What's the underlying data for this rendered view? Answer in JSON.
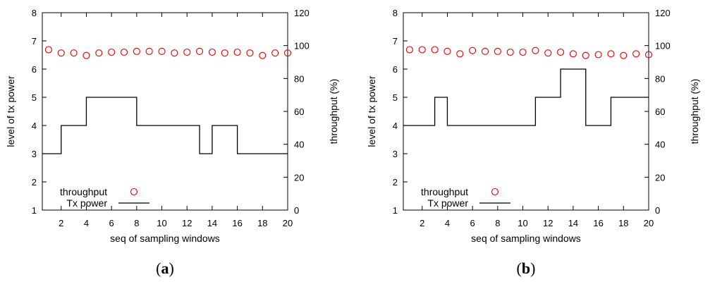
{
  "chart_data": [
    {
      "type": "line",
      "panel_label": "a",
      "caption_open": "(",
      "caption_close": ")",
      "xlabel": "seq of sampling windows",
      "ylabel": "level of tx power",
      "y2label": "throughput (%)",
      "xlim": [
        0.5,
        20
      ],
      "ylim": [
        1,
        8
      ],
      "y2lim": [
        0,
        120
      ],
      "xticks": [
        2,
        4,
        6,
        8,
        10,
        12,
        14,
        16,
        18,
        20
      ],
      "yticks": [
        1,
        2,
        3,
        4,
        5,
        6,
        7,
        8
      ],
      "y2ticks": [
        0,
        20,
        40,
        60,
        80,
        100,
        120
      ],
      "legend_position": "bottom-left",
      "series": [
        {
          "name": "throughput",
          "style": "scatter-circle",
          "color": "#e00000",
          "axis": "right",
          "x": [
            1,
            2,
            3,
            4,
            5,
            6,
            7,
            8,
            9,
            10,
            11,
            12,
            13,
            14,
            15,
            16,
            17,
            18,
            19,
            20
          ],
          "y": [
            97.5,
            95.5,
            95.5,
            94,
            95.5,
            96,
            96,
            96.5,
            96.5,
            96.5,
            95.5,
            96,
            96.5,
            96,
            95.5,
            96,
            95.5,
            94,
            95.5,
            95.5
          ]
        },
        {
          "name": "Tx power",
          "style": "step-line",
          "color": "#000000",
          "axis": "left",
          "x": [
            0.5,
            2,
            4,
            8,
            13,
            14,
            16,
            20
          ],
          "y": [
            3,
            4,
            5,
            4,
            3,
            4,
            3,
            3
          ]
        }
      ]
    },
    {
      "type": "line",
      "panel_label": "b",
      "caption_open": "(",
      "caption_close": ")",
      "xlabel": "seq of sampling windows",
      "ylabel": "level of tx power",
      "y2label": "throughput (%)",
      "xlim": [
        0.5,
        20
      ],
      "ylim": [
        1,
        8
      ],
      "y2lim": [
        0,
        120
      ],
      "xticks": [
        2,
        4,
        6,
        8,
        10,
        12,
        14,
        16,
        18,
        20
      ],
      "yticks": [
        1,
        2,
        3,
        4,
        5,
        6,
        7,
        8
      ],
      "y2ticks": [
        0,
        20,
        40,
        60,
        80,
        100,
        120
      ],
      "legend_position": "bottom-left",
      "series": [
        {
          "name": "throughput",
          "style": "scatter-circle",
          "color": "#e00000",
          "axis": "right",
          "x": [
            1,
            2,
            3,
            4,
            5,
            6,
            7,
            8,
            9,
            10,
            11,
            12,
            13,
            14,
            15,
            16,
            17,
            18,
            19,
            20
          ],
          "y": [
            97.5,
            97.5,
            97.5,
            96.5,
            95,
            97,
            96.5,
            96.5,
            96,
            96,
            97,
            95.5,
            96,
            95,
            94,
            94.5,
            95,
            94,
            95,
            94.5
          ]
        },
        {
          "name": "Tx power",
          "style": "step-line",
          "color": "#000000",
          "axis": "left",
          "x": [
            0.5,
            3,
            4,
            11,
            13,
            15,
            17,
            20
          ],
          "y": [
            4,
            5,
            4,
            5,
            6,
            4,
            5,
            5
          ]
        }
      ]
    }
  ]
}
